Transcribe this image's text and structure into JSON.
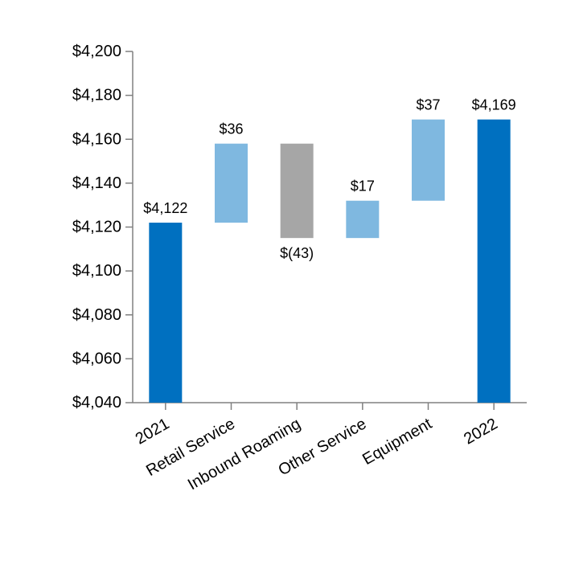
{
  "chart_data": {
    "type": "bar",
    "subtype": "waterfall",
    "title": "",
    "xlabel": "",
    "ylabel": "",
    "ylim": [
      4040,
      4200
    ],
    "yticks": [
      4040,
      4060,
      4080,
      4100,
      4120,
      4140,
      4160,
      4180,
      4200
    ],
    "ytick_labels": [
      "$4,040",
      "$4,060",
      "$4,080",
      "$4,100",
      "$4,120",
      "$4,140",
      "$4,160",
      "$4,180",
      "$4,200"
    ],
    "grid": false,
    "categories": [
      "2021",
      "Retail Service",
      "Inbound Roaming",
      "Other Service",
      "Equipment",
      "2022"
    ],
    "values": [
      4122,
      36,
      -43,
      17,
      37,
      4169
    ],
    "kinds": [
      "total",
      "increase",
      "decrease",
      "increase",
      "increase",
      "total"
    ],
    "data_labels": [
      "$4,122",
      "$36",
      "$(43)",
      "$17",
      "$37",
      "$4,169"
    ],
    "colors": {
      "total": "#0070c0",
      "increase": "#7fb8e0",
      "decrease": "#a6a6a6",
      "axis": "#808080"
    }
  }
}
